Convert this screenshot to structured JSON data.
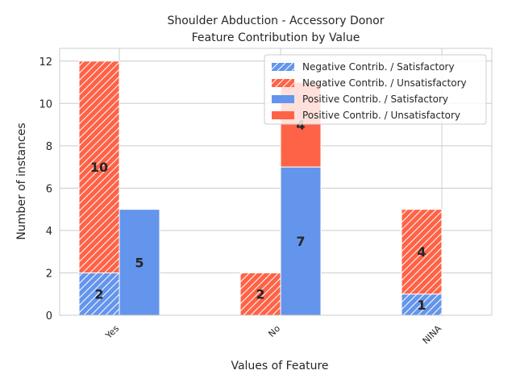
{
  "chart_data": {
    "type": "bar",
    "title_line1": "Shoulder Abduction - Accessory Donor",
    "title_line2": "Feature Contribution by Value",
    "xlabel": "Values of Feature",
    "ylabel": "Number of instances",
    "categories": [
      "Yes",
      "No",
      "NINA"
    ],
    "ylim": [
      0,
      12.6
    ],
    "yticks": [
      "0",
      "2",
      "4",
      "6",
      "8",
      "10",
      "12"
    ],
    "grid": true,
    "legend_position": "top-right",
    "colors": {
      "satisfactory": "#6495ED",
      "unsatisfactory": "#FF6347"
    },
    "groups": [
      {
        "name": "Negative Contrib.",
        "hatched": true,
        "stack": [
          {
            "name": "Negative Contrib. / Satisfactory",
            "color_key": "satisfactory",
            "values": [
              2,
              0,
              1
            ],
            "labels": [
              "2",
              "",
              "1"
            ]
          },
          {
            "name": "Negative Contrib. / Unsatisfactory",
            "color_key": "unsatisfactory",
            "values": [
              10,
              2,
              4
            ],
            "labels": [
              "10",
              "2",
              "4"
            ]
          }
        ]
      },
      {
        "name": "Positive Contrib.",
        "hatched": false,
        "stack": [
          {
            "name": "Positive Contrib. / Satisfactory",
            "color_key": "satisfactory",
            "values": [
              5,
              7,
              0
            ],
            "labels": [
              "5",
              "7",
              ""
            ]
          },
          {
            "name": "Positive Contrib. / Unsatisfactory",
            "color_key": "unsatisfactory",
            "values": [
              0,
              4,
              0
            ],
            "labels": [
              "",
              "4",
              ""
            ]
          }
        ]
      }
    ]
  }
}
